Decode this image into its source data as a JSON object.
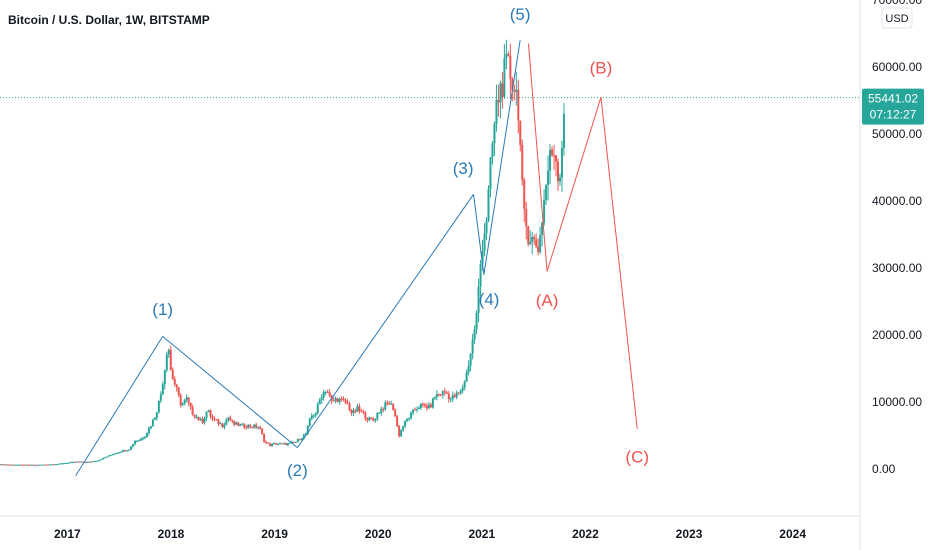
{
  "chart_data": {
    "type": "candlestick",
    "title": "Bitcoin / U.S. Dollar, 1W, BITSTAMP",
    "currency": "USD",
    "price_axis": {
      "ticks": [
        "70000.00",
        "60000.00",
        "50000.00",
        "40000.00",
        "30000.00",
        "20000.00",
        "10000.00",
        "0.00"
      ],
      "tick_values": [
        70000,
        60000,
        50000,
        40000,
        30000,
        20000,
        10000,
        0
      ],
      "range": [
        -7000,
        70000
      ]
    },
    "time_axis": {
      "ticks": [
        "2017",
        "2018",
        "2019",
        "2020",
        "2021",
        "2022",
        "2023",
        "2024"
      ],
      "tick_years": [
        2017,
        2018,
        2019,
        2020,
        2021,
        2022,
        2023,
        2024
      ],
      "range": [
        2016.35,
        2024.65
      ]
    },
    "last_price": {
      "value": "55441.02",
      "numeric": 55441.02,
      "countdown": "07:12:27",
      "color": "#26a69a"
    },
    "price_series": [
      [
        2016.35,
        700
      ],
      [
        2016.5,
        650
      ],
      [
        2016.7,
        620
      ],
      [
        2016.9,
        750
      ],
      [
        2017.0,
        950
      ],
      [
        2017.1,
        1100
      ],
      [
        2017.2,
        1050
      ],
      [
        2017.3,
        1300
      ],
      [
        2017.4,
        2000
      ],
      [
        2017.5,
        2600
      ],
      [
        2017.6,
        3000
      ],
      [
        2017.65,
        4200
      ],
      [
        2017.7,
        4400
      ],
      [
        2017.75,
        5000
      ],
      [
        2017.8,
        6400
      ],
      [
        2017.85,
        8000
      ],
      [
        2017.9,
        11000
      ],
      [
        2017.95,
        16000
      ],
      [
        2017.97,
        19500
      ],
      [
        2018.0,
        14500
      ],
      [
        2018.05,
        12000
      ],
      [
        2018.1,
        9500
      ],
      [
        2018.15,
        10500
      ],
      [
        2018.2,
        8500
      ],
      [
        2018.3,
        7000
      ],
      [
        2018.35,
        8800
      ],
      [
        2018.4,
        7500
      ],
      [
        2018.5,
        6500
      ],
      [
        2018.55,
        7800
      ],
      [
        2018.6,
        6700
      ],
      [
        2018.7,
        6500
      ],
      [
        2018.85,
        6300
      ],
      [
        2018.9,
        4200
      ],
      [
        2018.95,
        3500
      ],
      [
        2019.0,
        3800
      ],
      [
        2019.1,
        3700
      ],
      [
        2019.2,
        4000
      ],
      [
        2019.3,
        5200
      ],
      [
        2019.35,
        7800
      ],
      [
        2019.4,
        8500
      ],
      [
        2019.45,
        11000
      ],
      [
        2019.5,
        12000
      ],
      [
        2019.55,
        10000
      ],
      [
        2019.6,
        10500
      ],
      [
        2019.7,
        9800
      ],
      [
        2019.75,
        8200
      ],
      [
        2019.8,
        9000
      ],
      [
        2019.9,
        7500
      ],
      [
        2019.95,
        7200
      ],
      [
        2020.0,
        8500
      ],
      [
        2020.1,
        10000
      ],
      [
        2020.15,
        9000
      ],
      [
        2020.2,
        5000
      ],
      [
        2020.25,
        6800
      ],
      [
        2020.35,
        8800
      ],
      [
        2020.4,
        9500
      ],
      [
        2020.5,
        9200
      ],
      [
        2020.55,
        11000
      ],
      [
        2020.65,
        11500
      ],
      [
        2020.7,
        10500
      ],
      [
        2020.8,
        11500
      ],
      [
        2020.85,
        14000
      ],
      [
        2020.9,
        18000
      ],
      [
        2020.95,
        23000
      ],
      [
        2021.0,
        33000
      ],
      [
        2021.05,
        38000
      ],
      [
        2021.1,
        48000
      ],
      [
        2021.15,
        55000
      ],
      [
        2021.2,
        58000
      ],
      [
        2021.25,
        60000
      ],
      [
        2021.3,
        58000
      ],
      [
        2021.35,
        55000
      ],
      [
        2021.38,
        45000
      ],
      [
        2021.4,
        38000
      ],
      [
        2021.45,
        35000
      ],
      [
        2021.5,
        34000
      ],
      [
        2021.55,
        33000
      ],
      [
        2021.6,
        40000
      ],
      [
        2021.65,
        46000
      ],
      [
        2021.7,
        48000
      ],
      [
        2021.75,
        43000
      ],
      [
        2021.77,
        48000
      ],
      [
        2021.8,
        55441
      ]
    ],
    "series": [
      {
        "color": "#2a7ab5",
        "points": [
          {
            "x": 2017.08,
            "y": -1000
          },
          {
            "x": 2017.92,
            "y": 19800
          },
          {
            "x": 2019.22,
            "y": 3200
          },
          {
            "x": 2020.92,
            "y": 41000
          },
          {
            "x": 2021.02,
            "y": 29000
          },
          {
            "x": 2021.37,
            "y": 64000
          }
        ]
      },
      {
        "color": "#f0524f",
        "points": [
          {
            "x": 2021.45,
            "y": 63500
          },
          {
            "x": 2021.63,
            "y": 29500
          },
          {
            "x": 2022.15,
            "y": 55500
          },
          {
            "x": 2022.5,
            "y": 6000
          }
        ]
      }
    ],
    "wave_labels": [
      {
        "text": "(1)",
        "x": 2017.92,
        "y": 23000,
        "color": "#2a7ab5"
      },
      {
        "text": "(2)",
        "x": 2019.22,
        "y": -1000,
        "color": "#2a7ab5"
      },
      {
        "text": "(3)",
        "x": 2020.82,
        "y": 44000,
        "color": "#2a7ab5"
      },
      {
        "text": "(4)",
        "x": 2021.07,
        "y": 24500,
        "color": "#2a7ab5"
      },
      {
        "text": "(5)",
        "x": 2021.37,
        "y": 67000,
        "color": "#2a7ab5"
      },
      {
        "text": "(A)",
        "x": 2021.63,
        "y": 24300,
        "color": "#f0524f"
      },
      {
        "text": "(B)",
        "x": 2022.15,
        "y": 59000,
        "color": "#f0524f"
      },
      {
        "text": "(C)",
        "x": 2022.5,
        "y": 1000,
        "color": "#f0524f"
      }
    ]
  }
}
